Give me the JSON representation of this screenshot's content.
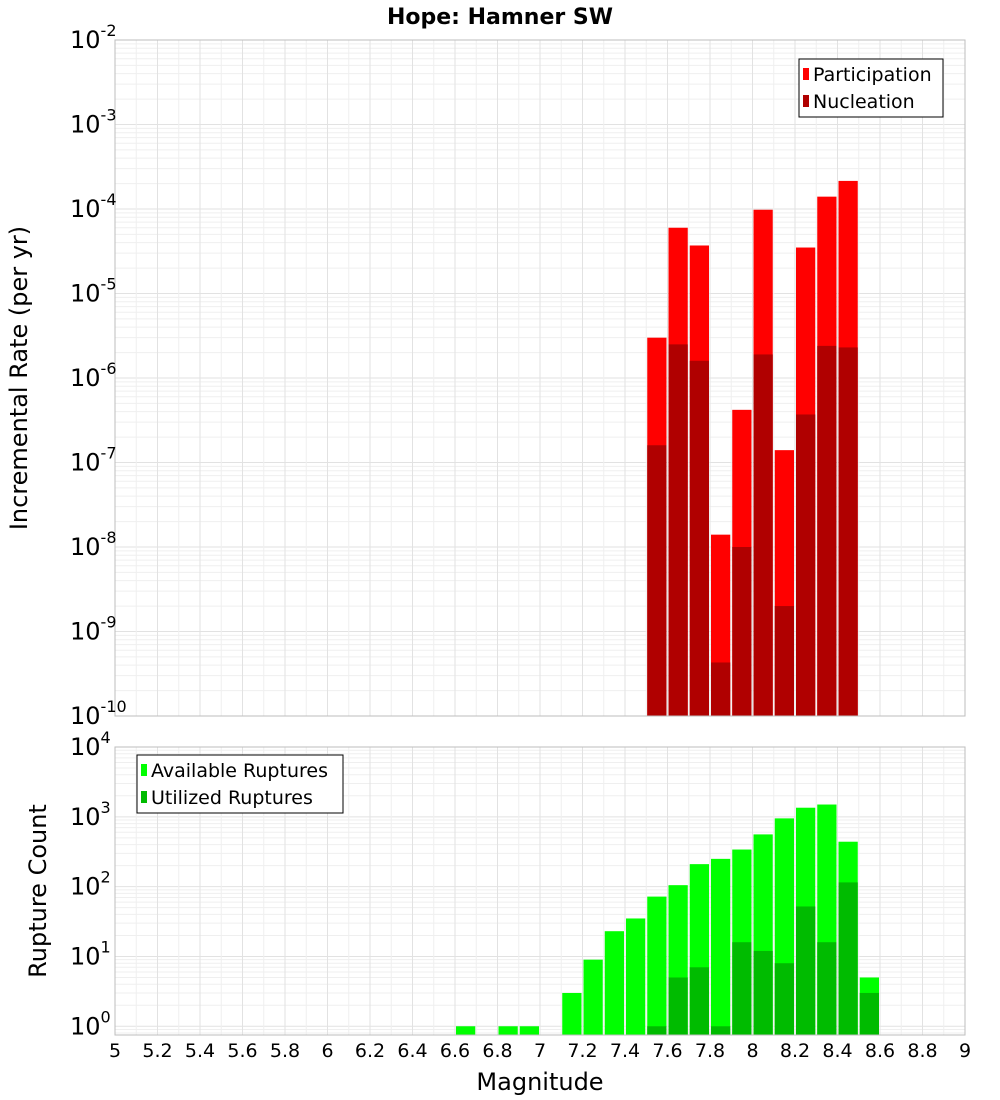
{
  "chart_data": [
    {
      "type": "bar",
      "title": "Hope: Hamner SW",
      "xlabel": "",
      "ylabel": "Incremental Rate (per yr)",
      "yscale": "log",
      "xlim": [
        5,
        9
      ],
      "ylim": [
        1e-10,
        0.01
      ],
      "y_ticks": [
        {
          "base": "10",
          "exp": "-10"
        },
        {
          "base": "10",
          "exp": "-9"
        },
        {
          "base": "10",
          "exp": "-8"
        },
        {
          "base": "10",
          "exp": "-7"
        },
        {
          "base": "10",
          "exp": "-6"
        },
        {
          "base": "10",
          "exp": "-5"
        },
        {
          "base": "10",
          "exp": "-4"
        },
        {
          "base": "10",
          "exp": "-3"
        },
        {
          "base": "10",
          "exp": "-2"
        }
      ],
      "grid": true,
      "legend": "top-right",
      "bin_width": 0.1,
      "x": [
        7.55,
        7.65,
        7.75,
        7.85,
        7.95,
        8.05,
        8.15,
        8.25,
        8.35,
        8.45
      ],
      "series": [
        {
          "name": "Participation",
          "color": "#ff0000",
          "values": [
            3e-06,
            6e-05,
            3.7e-05,
            1.4e-08,
            4.2e-07,
            9.8e-05,
            1.4e-07,
            3.5e-05,
            0.00014,
            0.000215
          ]
        },
        {
          "name": "Nucleation",
          "color": "#b00000",
          "values": [
            1.6e-07,
            2.5e-06,
            1.6e-06,
            4.3e-10,
            1e-08,
            1.9e-06,
            2e-09,
            3.7e-07,
            2.4e-06,
            2.3e-06
          ]
        }
      ]
    },
    {
      "type": "bar",
      "title": "",
      "xlabel": "Magnitude",
      "ylabel": "Rupture Count",
      "yscale": "log",
      "xlim": [
        5,
        9
      ],
      "ylim": [
        0.75,
        10000.0
      ],
      "y_ticks": [
        {
          "base": "10",
          "exp": "0"
        },
        {
          "base": "10",
          "exp": "1"
        },
        {
          "base": "10",
          "exp": "2"
        },
        {
          "base": "10",
          "exp": "3"
        },
        {
          "base": "10",
          "exp": "4"
        }
      ],
      "x_ticks": [
        "5",
        "5.2",
        "5.4",
        "5.6",
        "5.8",
        "6",
        "6.2",
        "6.4",
        "6.6",
        "6.8",
        "7",
        "7.2",
        "7.4",
        "7.6",
        "7.8",
        "8",
        "8.2",
        "8.4",
        "8.6",
        "8.8",
        "9"
      ],
      "grid": true,
      "legend": "top-left",
      "bin_width": 0.1,
      "x": [
        6.65,
        6.85,
        6.95,
        7.15,
        7.25,
        7.35,
        7.45,
        7.55,
        7.65,
        7.75,
        7.85,
        7.95,
        8.05,
        8.15,
        8.25,
        8.35,
        8.45,
        8.55
      ],
      "series": [
        {
          "name": "Available Ruptures",
          "color": "#00ff00",
          "values": [
            1,
            1,
            1,
            3,
            9,
            23,
            35,
            72,
            105,
            210,
            250,
            340,
            560,
            950,
            1350,
            1500,
            440,
            5
          ]
        },
        {
          "name": "Utilized Ruptures",
          "color": "#00bb00",
          "values": [
            0,
            0,
            0,
            0,
            0,
            0,
            0,
            1,
            5,
            7,
            1,
            16,
            12,
            8,
            52,
            16,
            115,
            3
          ]
        }
      ]
    }
  ]
}
